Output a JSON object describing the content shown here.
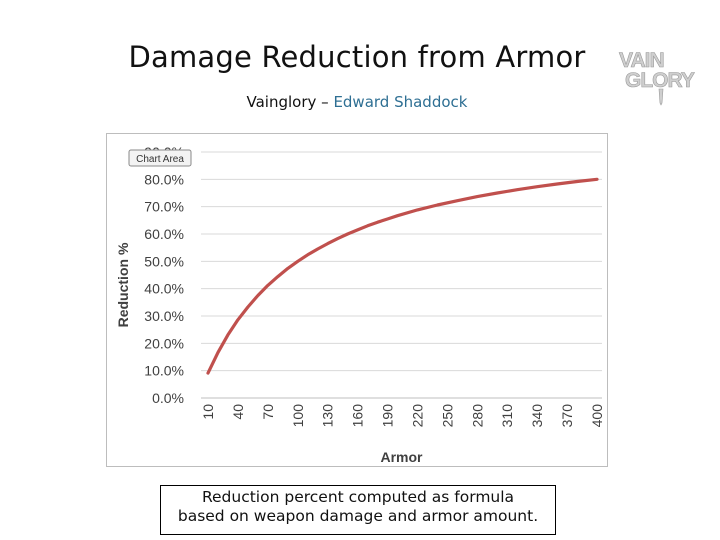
{
  "slide": {
    "title": "Damage Reduction from Armor",
    "subtitle_prefix": "Vainglory – ",
    "subtitle_author": "Edward Shaddock",
    "caption_line1": "Reduction percent computed as formula",
    "caption_line2": "based on weapon damage and armor amount."
  },
  "logo": {
    "line1": "VAIN",
    "line2": "GLORY",
    "color": "#cfcfcf"
  },
  "chart_area_tooltip": "Chart Area",
  "colors": {
    "line": "#c0504d",
    "grid": "#d9d9d9",
    "axis_text": "#404040"
  },
  "chart_data": {
    "type": "line",
    "xlabel": "Armor",
    "ylabel": "Reduction %",
    "x_ticks": [
      "10",
      "40",
      "70",
      "100",
      "130",
      "160",
      "190",
      "220",
      "250",
      "280",
      "310",
      "340",
      "370",
      "400"
    ],
    "y_ticks": [
      "0.0%",
      "10.0%",
      "20.0%",
      "30.0%",
      "40.0%",
      "50.0%",
      "60.0%",
      "70.0%",
      "80.0%",
      "90.0%"
    ],
    "ylim": [
      0,
      90
    ],
    "xlim": [
      10,
      400
    ],
    "grid": "horizontal",
    "series": [
      {
        "x": [
          10,
          20,
          30,
          40,
          50,
          60,
          70,
          80,
          90,
          100,
          110,
          120,
          130,
          140,
          150,
          160,
          170,
          180,
          190,
          200,
          220,
          240,
          260,
          280,
          300,
          320,
          340,
          360,
          380,
          400
        ],
        "values": [
          9.1,
          16.7,
          23.1,
          28.6,
          33.3,
          37.5,
          41.2,
          44.4,
          47.4,
          50.0,
          52.4,
          54.5,
          56.5,
          58.3,
          60.0,
          61.5,
          63.0,
          64.3,
          65.5,
          66.7,
          68.8,
          70.6,
          72.2,
          73.7,
          75.0,
          76.2,
          77.3,
          78.3,
          79.2,
          80.0
        ]
      }
    ]
  }
}
